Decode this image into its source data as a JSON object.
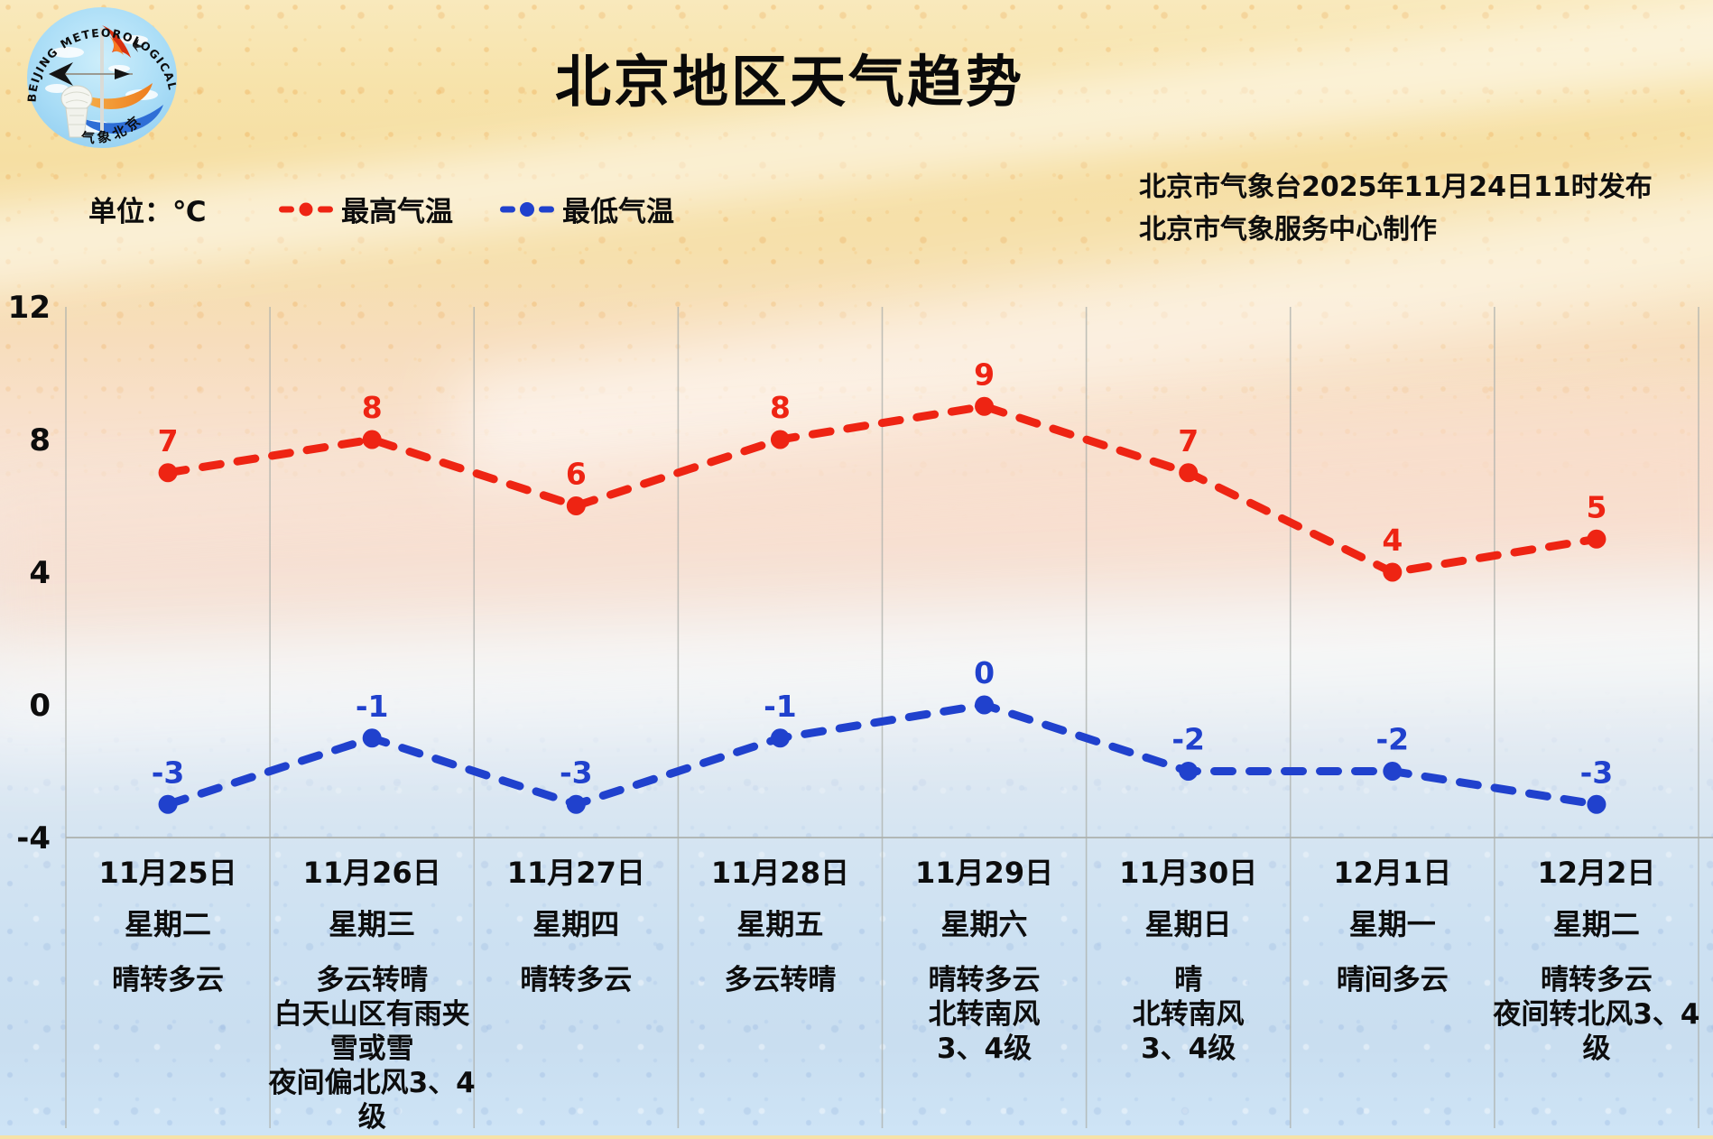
{
  "title": "北京地区天气趋势",
  "unit_label": "单位：℃",
  "issue": {
    "line1": "北京市气象台2025年11月24日11时发布",
    "line2": "北京市气象服务中心制作"
  },
  "legend": {
    "high_label": "最高气温",
    "low_label": "最低气温"
  },
  "logo": {
    "arc_text": "BEIJING METEOROLOGICAL SERVICE",
    "seal_text": "气象北京"
  },
  "colors": {
    "high": "#ee2413",
    "low": "#2041cd",
    "grid": "#adb1ac",
    "text": "#0d0d0d"
  },
  "chart_data": {
    "type": "line",
    "categories": [
      "11月25日",
      "11月26日",
      "11月27日",
      "11月28日",
      "11月29日",
      "11月30日",
      "12月1日",
      "12月2日"
    ],
    "weekdays": [
      "星期二",
      "星期三",
      "星期四",
      "星期五",
      "星期六",
      "星期日",
      "星期一",
      "星期二"
    ],
    "weather": [
      [
        "晴转多云"
      ],
      [
        "多云转晴",
        "白天山区有雨夹雪或雪",
        "夜间偏北风3、4级"
      ],
      [
        "晴转多云"
      ],
      [
        "多云转晴"
      ],
      [
        "晴转多云",
        "北转南风",
        "3、4级"
      ],
      [
        "晴",
        "北转南风",
        "3、4级"
      ],
      [
        "晴间多云"
      ],
      [
        "晴转多云",
        "夜间转北风3、4级"
      ]
    ],
    "series": [
      {
        "name": "最高气温",
        "color": "#ee2413",
        "values": [
          7,
          8,
          6,
          8,
          9,
          7,
          4,
          5
        ]
      },
      {
        "name": "最低气温",
        "color": "#2041cd",
        "values": [
          -3,
          -1,
          -3,
          -1,
          0,
          -2,
          -2,
          -3
        ]
      }
    ],
    "yticks": [
      12,
      8,
      4,
      0,
      -4
    ],
    "ylim": [
      -4,
      12
    ],
    "xlabel": "",
    "ylabel": "℃",
    "grid": "vertical",
    "legend_position": "top-left"
  }
}
